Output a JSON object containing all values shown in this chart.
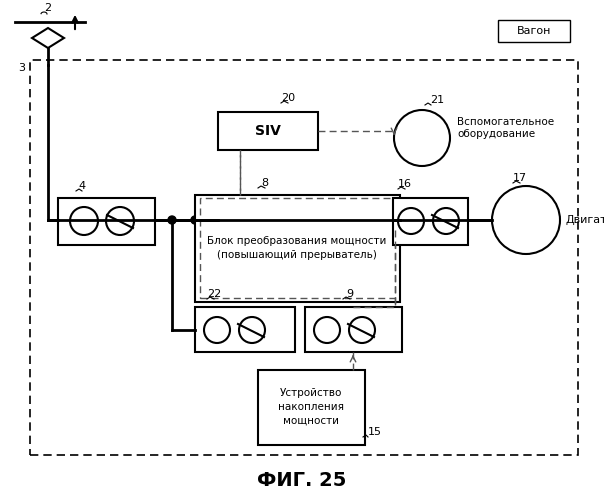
{
  "title": "ФИГ. 25",
  "wagon_label": "Вагон",
  "label_2": "2",
  "label_3": "3",
  "label_4": "4",
  "label_8": "8",
  "label_9": "9",
  "label_15": "15",
  "label_16": "16",
  "label_17": "17",
  "label_20": "20",
  "label_21": "21",
  "label_22": "22",
  "siv_label": "SIV",
  "power_block_label": "Блок преобразования мощности\n(повышающий прерыватель)",
  "motor_label": "Двигатель",
  "aux_label": "Вспомогательное\nоборудование",
  "storage_label": "Устройство\nнакопления\nмощности",
  "bg_color": "#ffffff",
  "line_color": "#000000",
  "dashed_color": "#555555"
}
